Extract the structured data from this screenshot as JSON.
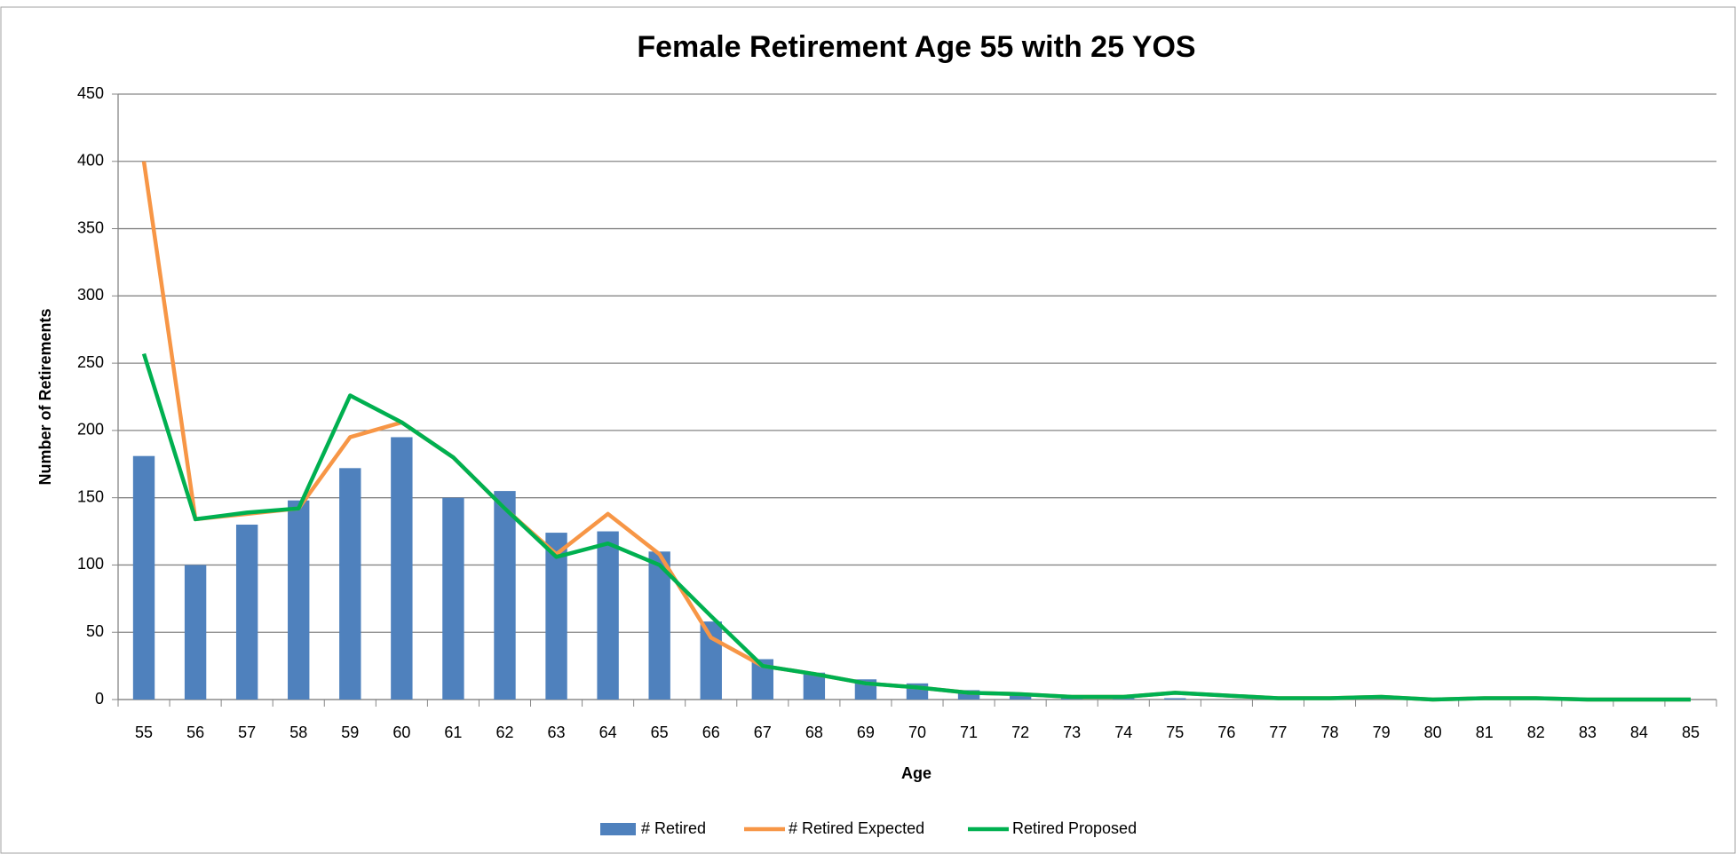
{
  "chart_data": {
    "type": "bar_line",
    "title": "Female Retirement Age 55 with 25 YOS",
    "x_label": "Age",
    "y_label": "Number of Retirements",
    "categories": [
      "55",
      "56",
      "57",
      "58",
      "59",
      "60",
      "61",
      "62",
      "63",
      "64",
      "65",
      "66",
      "67",
      "68",
      "69",
      "70",
      "71",
      "72",
      "73",
      "74",
      "75",
      "76",
      "77",
      "78",
      "79",
      "80",
      "81",
      "82",
      "83",
      "84",
      "85"
    ],
    "series": [
      {
        "name": "# Retired",
        "type": "bar",
        "color": "#4f81bd",
        "values": [
          181,
          100,
          130,
          148,
          172,
          195,
          150,
          155,
          124,
          125,
          110,
          58,
          30,
          20,
          15,
          12,
          7,
          3,
          1,
          1,
          1,
          0,
          0,
          0,
          0,
          0,
          0,
          0,
          0,
          0,
          0
        ]
      },
      {
        "name": "# Retired Expected",
        "type": "line",
        "color": "#f79646",
        "values": [
          400,
          134,
          138,
          142,
          195,
          206,
          180,
          142,
          108,
          138,
          108,
          46,
          25,
          19,
          12,
          9,
          5,
          4,
          2,
          2,
          5,
          3,
          1,
          1,
          2,
          0,
          1,
          1,
          0,
          0,
          0
        ]
      },
      {
        "name": "Retired Proposed",
        "type": "line",
        "color": "#00b050",
        "values": [
          257,
          134,
          139,
          142,
          226,
          206,
          180,
          142,
          106,
          116,
          100,
          62,
          25,
          19,
          12,
          9,
          5,
          4,
          2,
          2,
          5,
          3,
          1,
          1,
          2,
          0,
          1,
          1,
          0,
          0,
          0
        ]
      }
    ],
    "ylim": [
      0,
      450
    ],
    "yticks": [
      0,
      50,
      100,
      150,
      200,
      250,
      300,
      350,
      400,
      450
    ],
    "grid": true
  }
}
